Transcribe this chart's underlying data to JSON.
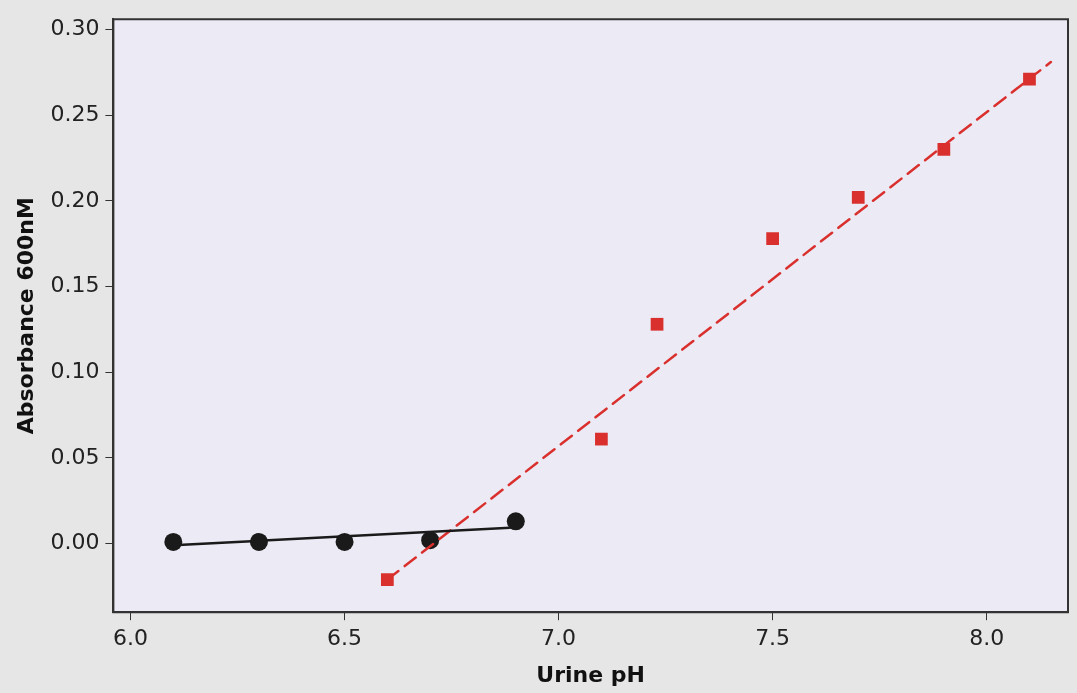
{
  "chart_data": {
    "type": "scatter",
    "xlabel": "Urine pH",
    "ylabel": "Absorbance 600nM",
    "xlim": [
      5.96,
      8.19
    ],
    "ylim": [
      -0.04,
      0.306
    ],
    "xticks": [
      {
        "value": 6,
        "label": "6.0"
      },
      {
        "value": 6.5,
        "label": "6.5"
      },
      {
        "value": 7,
        "label": "7.0"
      },
      {
        "value": 7.5,
        "label": "7.5"
      },
      {
        "value": 8,
        "label": "8.0"
      }
    ],
    "yticks": [
      {
        "value": 0,
        "label": "0.00"
      },
      {
        "value": 0.05,
        "label": "0.05"
      },
      {
        "value": 0.1,
        "label": "0.10"
      },
      {
        "value": 0.15,
        "label": "0.15"
      },
      {
        "value": 0.2,
        "label": "0.20"
      },
      {
        "value": 0.25,
        "label": "0.25"
      },
      {
        "value": 0.3,
        "label": "0.30"
      }
    ],
    "grid": false,
    "legend": false,
    "series": [
      {
        "type": "line",
        "color": "#1a1a1a",
        "marker": "none",
        "line_style": "solid",
        "x": [
          6.1,
          6.9
        ],
        "values": [
          -0.001,
          0.0095
        ]
      },
      {
        "type": "line",
        "color": "#d9302e",
        "marker": "none",
        "line_style": "dashed",
        "x": [
          6.6,
          8.15
        ],
        "values": [
          -0.021,
          0.281
        ]
      },
      {
        "type": "scatter",
        "color": "#1a1a1a",
        "marker": "circle",
        "x": [
          6.1,
          6.3,
          6.5,
          6.7,
          6.9
        ],
        "values": [
          0.001,
          0.001,
          0.001,
          0.002,
          0.013
        ]
      },
      {
        "type": "scatter",
        "color": "#d9302e",
        "marker": "square",
        "x": [
          6.6,
          7.1,
          7.23,
          7.5,
          7.7,
          7.9,
          8.1
        ],
        "values": [
          -0.021,
          0.061,
          0.128,
          0.178,
          0.202,
          0.23,
          0.271
        ]
      }
    ]
  }
}
